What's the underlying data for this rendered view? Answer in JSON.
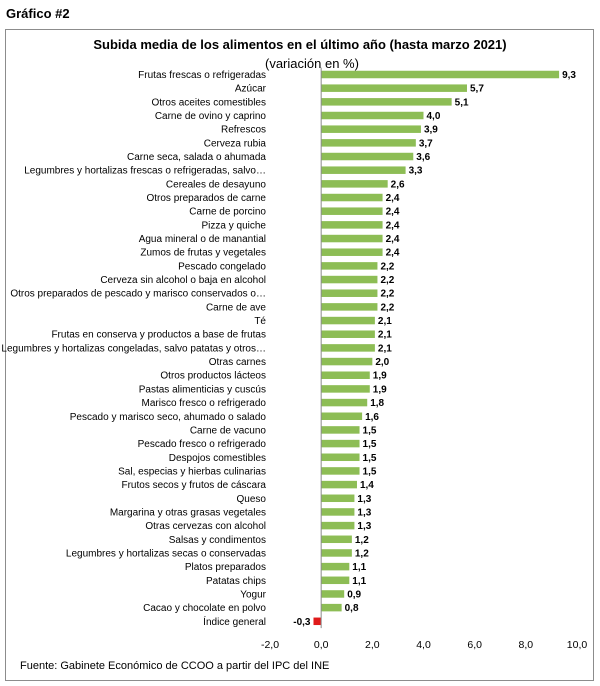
{
  "figure_label": "Gráfico #2",
  "source": "Fuente: Gabinete Económico de CCOO a partir del IPC del INE",
  "colors": {
    "bar": "#8dbd55",
    "highlight": "#e01a1a",
    "axis": "#8c8c8c"
  },
  "chart_data": {
    "type": "bar",
    "orientation": "horizontal",
    "title": "Subida media de los alimentos en el último año (hasta marzo 2021)",
    "subtitle": "(variación en %)",
    "xlim": [
      -2.0,
      10.0
    ],
    "xticks": [
      "-2,0",
      "0,0",
      "2,0",
      "4,0",
      "6,0",
      "8,0",
      "10,0"
    ],
    "grid": false,
    "categories": [
      "Frutas frescas o refrigeradas",
      "Azúcar",
      "Otros aceites comestibles",
      "Carne de ovino y caprino",
      "Refrescos",
      "Cerveza rubia",
      "Carne seca, salada o ahumada",
      "Legumbres y hortalizas frescas o refrigeradas, salvo…",
      "Cereales de desayuno",
      "Otros preparados de carne",
      "Carne de porcino",
      "Pizza y quiche",
      "Agua mineral o de manantial",
      "Zumos de frutas y vegetales",
      "Pescado congelado",
      "Cerveza sin alcohol o baja en alcohol",
      "Otros preparados de pescado y marisco conservados o…",
      "Carne de ave",
      "Té",
      "Frutas en conserva y productos a base de frutas",
      "Legumbres y hortalizas congeladas, salvo patatas y otros…",
      "Otras carnes",
      "Otros productos lácteos",
      "Pastas alimenticias y cuscús",
      "Marisco fresco o refrigerado",
      "Pescado y marisco seco, ahumado o salado",
      "Carne de vacuno",
      "Pescado fresco o refrigerado",
      "Despojos comestibles",
      "Sal, especias y hierbas culinarias",
      "Frutos secos y frutos de cáscara",
      "Queso",
      "Margarina y otras grasas vegetales",
      "Otras cervezas con alcohol",
      "Salsas y condimentos",
      "Legumbres y hortalizas secas o conservadas",
      "Platos preparados",
      "Patatas chips",
      "Yogur",
      "Cacao y chocolate en polvo",
      "Índice general"
    ],
    "values": [
      9.3,
      5.7,
      5.1,
      4.0,
      3.9,
      3.7,
      3.6,
      3.3,
      2.6,
      2.4,
      2.4,
      2.4,
      2.4,
      2.4,
      2.2,
      2.2,
      2.2,
      2.2,
      2.1,
      2.1,
      2.1,
      2.0,
      1.9,
      1.9,
      1.8,
      1.6,
      1.5,
      1.5,
      1.5,
      1.5,
      1.4,
      1.3,
      1.3,
      1.3,
      1.2,
      1.2,
      1.1,
      1.1,
      0.9,
      0.8,
      -0.3
    ],
    "value_labels": [
      "9,3",
      "5,7",
      "5,1",
      "4,0",
      "3,9",
      "3,7",
      "3,6",
      "3,3",
      "2,6",
      "2,4",
      "2,4",
      "2,4",
      "2,4",
      "2,4",
      "2,2",
      "2,2",
      "2,2",
      "2,2",
      "2,1",
      "2,1",
      "2,1",
      "2,0",
      "1,9",
      "1,9",
      "1,8",
      "1,6",
      "1,5",
      "1,5",
      "1,5",
      "1,5",
      "1,4",
      "1,3",
      "1,3",
      "1,3",
      "1,2",
      "1,2",
      "1,1",
      "1,1",
      "0,9",
      "0,8",
      "-0,3"
    ],
    "highlight_category": "Índice general"
  }
}
